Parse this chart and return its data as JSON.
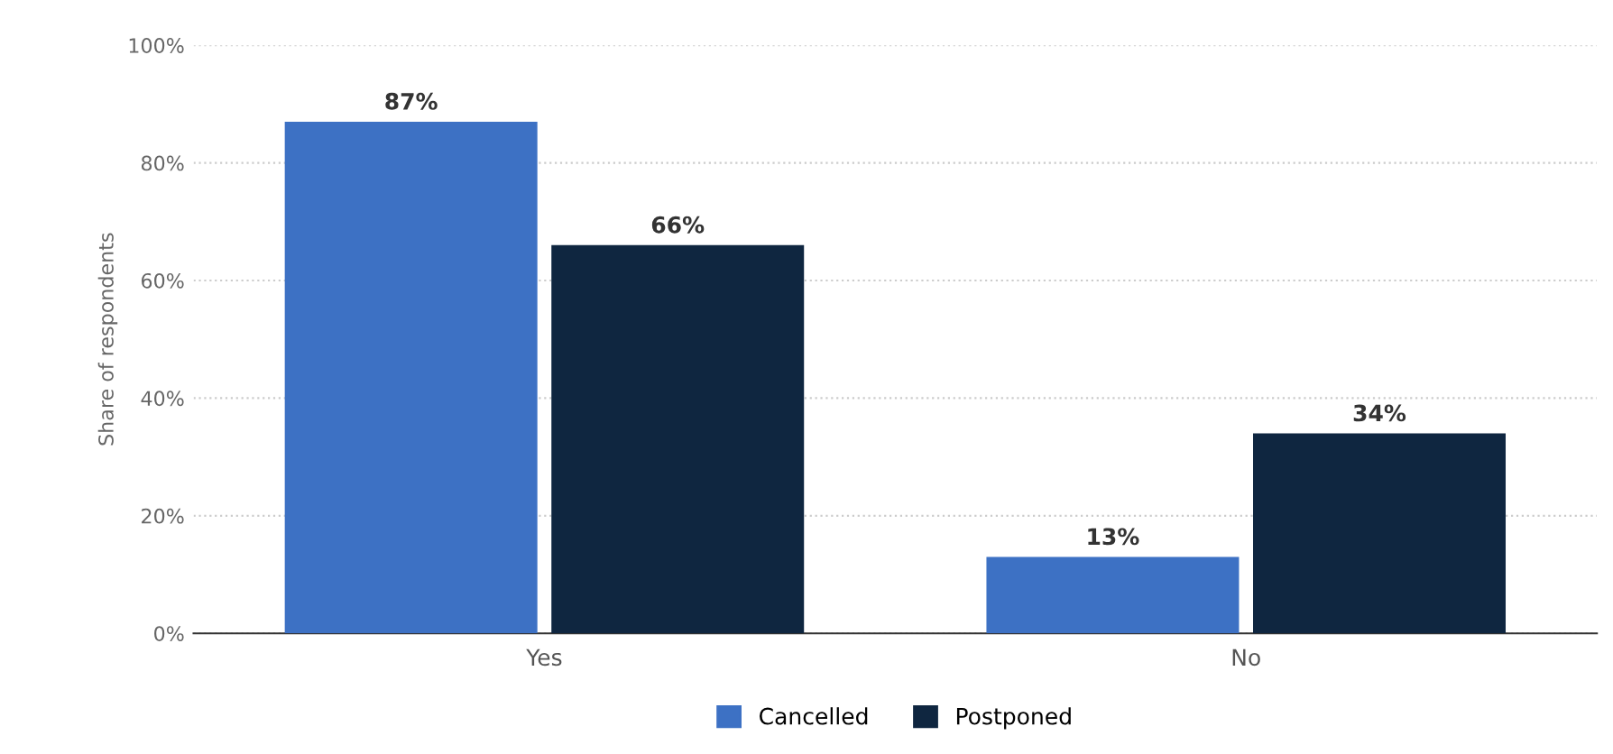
{
  "chart_data": {
    "type": "bar",
    "ylabel": "Share of respondents",
    "categories": [
      "Yes",
      "No"
    ],
    "series": [
      {
        "name": "Cancelled",
        "color": "#3d71c4",
        "values": [
          87,
          13
        ],
        "value_labels": [
          "87%",
          "13%"
        ]
      },
      {
        "name": "Postponed",
        "color": "#0f2640",
        "values": [
          66,
          34
        ],
        "value_labels": [
          "66%",
          "34%"
        ]
      }
    ],
    "ylim": [
      0,
      100
    ],
    "yticks": [
      {
        "value": 0,
        "label": "0%"
      },
      {
        "value": 20,
        "label": "20%"
      },
      {
        "value": 40,
        "label": "40%"
      },
      {
        "value": 60,
        "label": "60%"
      },
      {
        "value": 80,
        "label": "80%"
      },
      {
        "value": 100,
        "label": "100%"
      }
    ],
    "grid": "y",
    "legend": "bottom"
  }
}
